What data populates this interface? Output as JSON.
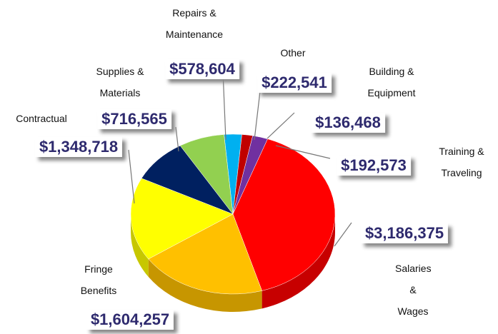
{
  "chart_data": {
    "type": "pie",
    "categories": [
      "Other",
      "Building & Equipment",
      "Training & Traveling",
      "Salaries & Wages",
      "Fringe Benefits",
      "Contractual",
      "Supplies & Materials",
      "Repairs & Maintenance"
    ],
    "values": [
      222541,
      136468,
      192573,
      3186375,
      1604257,
      1348718,
      716565,
      578604
    ],
    "value_labels": [
      "$222,541",
      "$136,468",
      "$192,573",
      "$3,186,375",
      "$1,604,257",
      "$1,348,718",
      "$716,565",
      "$578,604"
    ],
    "colors": [
      "#00b0f0",
      "#c00000",
      "#7030a0",
      "#ff0000",
      "#ffc000",
      "#ffff00",
      "#002060",
      "#92d050"
    ]
  }
}
